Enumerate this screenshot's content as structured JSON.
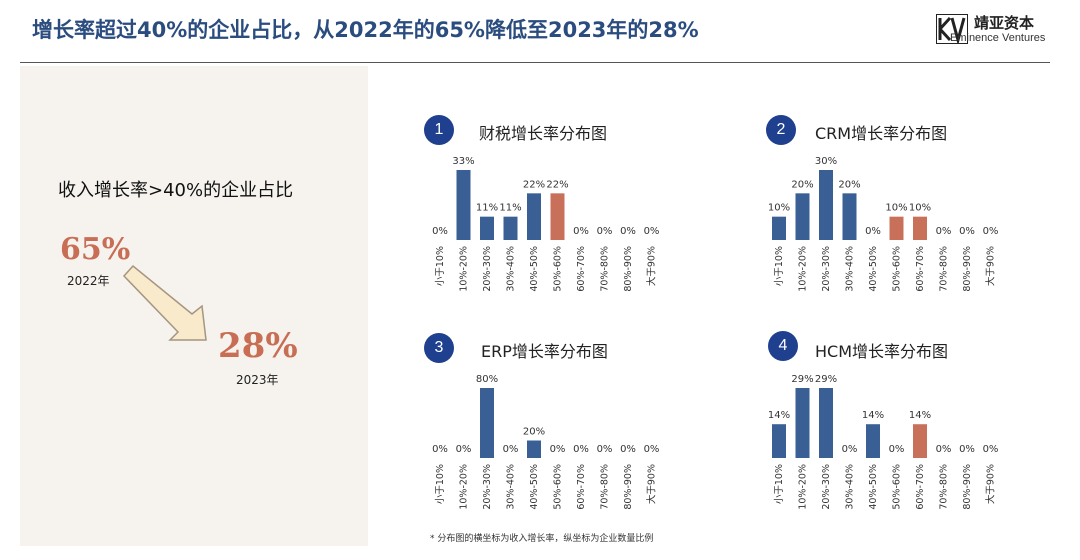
{
  "header": {
    "title": "增长率超过40%的企业占比，从2022年的65%降低至2023年的28%",
    "logo_cn": "靖亚资本",
    "logo_en": "Eminence Ventures"
  },
  "left": {
    "heading": "收入增长率>40%的企业占比",
    "from_value": "65%",
    "from_year": "2022年",
    "to_value": "28%",
    "to_year": "2023年"
  },
  "colors": {
    "bar": "#3A5F95",
    "highlight": "#C8705A",
    "badge": "#1F3F8F"
  },
  "chart_data": [
    {
      "type": "bar",
      "number": "1",
      "title": "财税增长率分布图",
      "categories": [
        "小于10%",
        "10%-20%",
        "20%-30%",
        "30%-40%",
        "40%-50%",
        "50%-60%",
        "60%-70%",
        "70%-80%",
        "80%-90%",
        "大于90%"
      ],
      "values": [
        0,
        33,
        11,
        11,
        22,
        22,
        0,
        0,
        0,
        0
      ],
      "value_labels": [
        "0%",
        "33%",
        "11%",
        "11%",
        "22%",
        "22%",
        "0%",
        "0%",
        "0%",
        "0%"
      ],
      "highlight_index": 5,
      "ylim": [
        0,
        33
      ]
    },
    {
      "type": "bar",
      "number": "2",
      "title": "CRM增长率分布图",
      "categories": [
        "小于10%",
        "10%-20%",
        "20%-30%",
        "30%-40%",
        "40%-50%",
        "50%-60%",
        "60%-70%",
        "70%-80%",
        "80%-90%",
        "大于90%"
      ],
      "values": [
        10,
        20,
        30,
        20,
        0,
        10,
        10,
        0,
        0,
        0
      ],
      "value_labels": [
        "10%",
        "20%",
        "30%",
        "20%",
        "0%",
        "10%",
        "10%",
        "0%",
        "0%",
        "0%"
      ],
      "highlight_index": [
        5,
        6
      ],
      "ylim": [
        0,
        30
      ]
    },
    {
      "type": "bar",
      "number": "3",
      "title": "ERP增长率分布图",
      "categories": [
        "小于10%",
        "10%-20%",
        "20%-30%",
        "30%-40%",
        "40%-50%",
        "50%-60%",
        "60%-70%",
        "70%-80%",
        "80%-90%",
        "大于90%"
      ],
      "values": [
        0,
        0,
        80,
        0,
        20,
        0,
        0,
        0,
        0,
        0
      ],
      "value_labels": [
        "0%",
        "0%",
        "80%",
        "0%",
        "20%",
        "0%",
        "0%",
        "0%",
        "0%",
        "0%"
      ],
      "highlight_index": [],
      "ylim": [
        0,
        80
      ]
    },
    {
      "type": "bar",
      "number": "4",
      "title": "HCM增长率分布图",
      "categories": [
        "小于10%",
        "10%-20%",
        "20%-30%",
        "30%-40%",
        "40%-50%",
        "50%-60%",
        "60%-70%",
        "70%-80%",
        "80%-90%",
        "大于90%"
      ],
      "values": [
        14,
        29,
        29,
        0,
        14,
        0,
        14,
        0,
        0,
        0
      ],
      "value_labels": [
        "14%",
        "29%",
        "29%",
        "0%",
        "14%",
        "0%",
        "14%",
        "0%",
        "0%",
        "0%"
      ],
      "highlight_index": [
        6
      ],
      "ylim": [
        0,
        29
      ]
    }
  ],
  "footnote": "* 分布图的横坐标为收入增长率，纵坐标为企业数量比例"
}
